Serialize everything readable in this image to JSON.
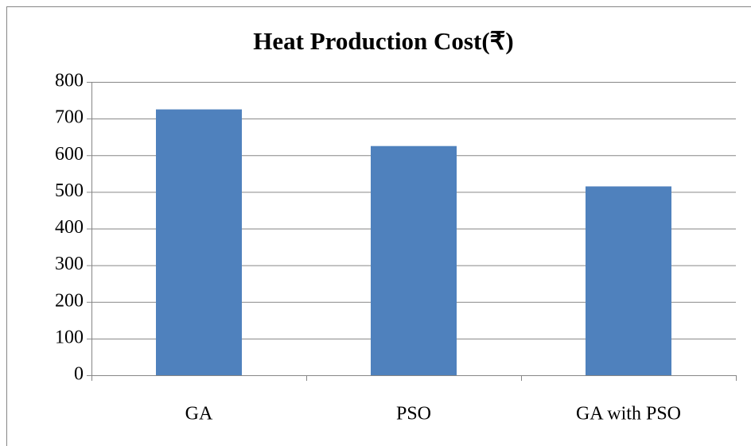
{
  "chart_data": {
    "type": "bar",
    "title": "Heat Production Cost(₹)",
    "categories": [
      "GA",
      "PSO",
      "GA with PSO"
    ],
    "values": [
      725,
      625,
      515
    ],
    "color": "#4f81bd",
    "ylim": [
      0,
      800
    ],
    "yticks": [
      0,
      100,
      200,
      300,
      400,
      500,
      600,
      700,
      800
    ],
    "grid": true
  }
}
